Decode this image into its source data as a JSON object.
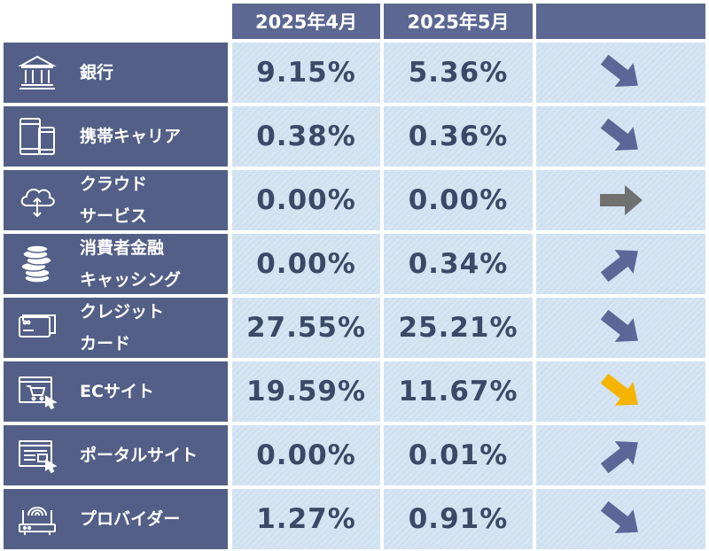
{
  "chart_data": {
    "type": "table",
    "columns": [
      "2025年4月",
      "2025年5月",
      ""
    ],
    "rows": [
      {
        "label": [
          "銀行"
        ],
        "icon": "bank-icon",
        "apr": "9.15%",
        "may": "5.36%",
        "trend": "down",
        "trend_color": "#5b6797"
      },
      {
        "label": [
          "携帯キャリア"
        ],
        "icon": "mobile-carrier-icon",
        "apr": "0.38%",
        "may": "0.36%",
        "trend": "down",
        "trend_color": "#5b6797"
      },
      {
        "label": [
          "クラウド",
          "サービス"
        ],
        "icon": "cloud-service-icon",
        "apr": "0.00%",
        "may": "0.00%",
        "trend": "flat",
        "trend_color": "#707070"
      },
      {
        "label": [
          "消費者金融",
          "キャッシング"
        ],
        "icon": "coins-icon",
        "apr": "0.00%",
        "may": "0.34%",
        "trend": "up",
        "trend_color": "#5b6797"
      },
      {
        "label": [
          "クレジット",
          "カード"
        ],
        "icon": "credit-card-icon",
        "apr": "27.55%",
        "may": "25.21%",
        "trend": "down",
        "trend_color": "#5b6797"
      },
      {
        "label": [
          "ECサイト"
        ],
        "icon": "ec-site-icon",
        "apr": "19.59%",
        "may": "11.67%",
        "trend": "down",
        "trend_color": "#f5b400"
      },
      {
        "label": [
          "ポータルサイト"
        ],
        "icon": "portal-site-icon",
        "apr": "0.00%",
        "may": "0.01%",
        "trend": "up",
        "trend_color": "#5b6797"
      },
      {
        "label": [
          "プロバイダー"
        ],
        "icon": "router-icon",
        "apr": "1.27%",
        "may": "0.91%",
        "trend": "down",
        "trend_color": "#5b6797"
      }
    ]
  }
}
